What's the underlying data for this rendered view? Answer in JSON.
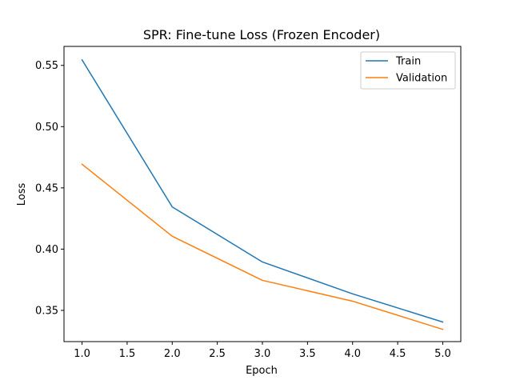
{
  "chart_data": {
    "type": "line",
    "title": "SPR: Fine-tune Loss (Frozen Encoder)",
    "xlabel": "Epoch",
    "ylabel": "Loss",
    "x": [
      1,
      2,
      3,
      4,
      5
    ],
    "xlim": [
      0.8,
      5.2
    ],
    "ylim": [
      0.3245,
      0.5655
    ],
    "xticks": [
      1.0,
      1.5,
      2.0,
      2.5,
      3.0,
      3.5,
      4.0,
      4.5,
      5.0
    ],
    "xtick_labels": [
      "1.0",
      "1.5",
      "2.0",
      "2.5",
      "3.0",
      "3.5",
      "4.0",
      "4.5",
      "5.0"
    ],
    "yticks": [
      0.35,
      0.4,
      0.45,
      0.5,
      0.55
    ],
    "ytick_labels": [
      "0.35",
      "0.40",
      "0.45",
      "0.50",
      "0.55"
    ],
    "grid": false,
    "legend_position": "top-right",
    "series": [
      {
        "name": "Train",
        "color": "#1f77b4",
        "values": [
          0.5545,
          0.4345,
          0.3895,
          0.3635,
          0.3405
        ]
      },
      {
        "name": "Validation",
        "color": "#ff7f0e",
        "values": [
          0.4693,
          0.4105,
          0.3745,
          0.3575,
          0.3345
        ]
      }
    ]
  }
}
